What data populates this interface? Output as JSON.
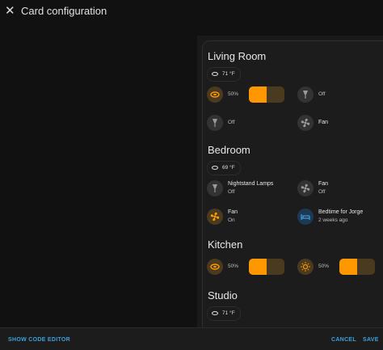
{
  "header": {
    "title": "Card configuration"
  },
  "sections": [
    {
      "title": "Living Room",
      "badge": "71 °F",
      "tiles": [
        {
          "state": "50%",
          "icon": "light",
          "on": true,
          "slider": 50
        },
        {
          "state": "Off",
          "icon": "lamp",
          "on": false
        },
        {
          "state": "Off",
          "icon": "lamp",
          "on": false
        },
        {
          "name": "Fan",
          "icon": "fan",
          "on": false
        }
      ]
    },
    {
      "title": "Bedroom",
      "badge": "69 °F",
      "tiles": [
        {
          "name": "Nightstand Lamps",
          "state": "Off",
          "icon": "lamp",
          "on": false
        },
        {
          "name": "Fan",
          "state": "Off",
          "icon": "fan",
          "on": false
        },
        {
          "name": "Fan",
          "state": "On",
          "icon": "fan",
          "on": true
        },
        {
          "name": "Bedtime for Jorge",
          "state": "2 weeks ago",
          "icon": "bed",
          "on": true
        }
      ]
    },
    {
      "title": "Kitchen",
      "tiles": [
        {
          "state": "50%",
          "icon": "light",
          "on": true,
          "slider": 50
        },
        {
          "state": "50%",
          "icon": "sun",
          "on": true,
          "slider": 50
        }
      ]
    },
    {
      "title": "Studio",
      "badge": "71 °F",
      "tiles": []
    }
  ],
  "footer": {
    "code_editor": "SHOW CODE EDITOR",
    "cancel": "CANCEL",
    "save": "SAVE"
  }
}
